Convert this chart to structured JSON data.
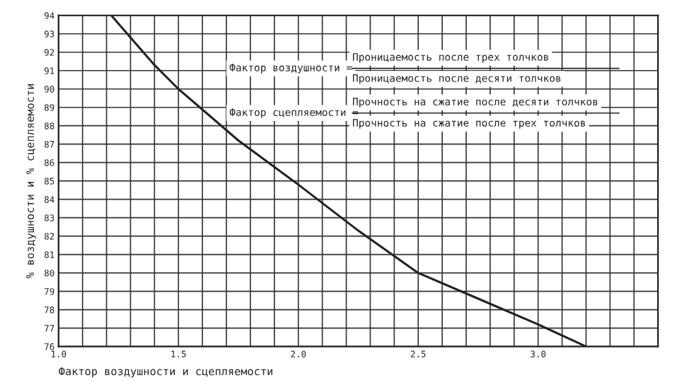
{
  "chart_data": {
    "type": "line",
    "xlabel": "Фактор воздушности и сцепляемости",
    "ylabel": "% воздушности и % сцепляемости",
    "x": [
      1.22,
      1.3,
      1.4,
      1.5,
      1.75,
      2.0,
      2.25,
      2.5,
      2.75,
      3.0,
      3.2
    ],
    "series": [
      {
        "color": "#222222",
        "values": [
          94,
          92.8,
          91.3,
          90,
          87.2,
          84.8,
          82.3,
          80.0,
          78.6,
          77.2,
          76
        ]
      }
    ],
    "xlim": [
      1.0,
      3.5
    ],
    "xticks": [
      {
        "value": 1.0,
        "label": "1.0"
      },
      {
        "value": 1.1,
        "label": null
      },
      {
        "value": 1.2,
        "label": null
      },
      {
        "value": 1.3,
        "label": null
      },
      {
        "value": 1.4,
        "label": null
      },
      1.5,
      {
        "value": 1.6,
        "label": null
      },
      {
        "value": 1.7,
        "label": null
      },
      {
        "value": 1.8,
        "label": null
      },
      {
        "value": 1.9,
        "label": null
      },
      {
        "value": 2.0,
        "label": "2.0"
      },
      {
        "value": 2.1,
        "label": null
      },
      {
        "value": 2.2,
        "label": null
      },
      {
        "value": 2.3,
        "label": null
      },
      {
        "value": 2.4,
        "label": null
      },
      2.5,
      {
        "value": 2.6,
        "label": null
      },
      {
        "value": 2.7,
        "label": null
      },
      {
        "value": 2.8,
        "label": null
      },
      {
        "value": 2.9,
        "label": null
      },
      {
        "value": 3.0,
        "label": "3.0"
      },
      {
        "value": 3.1,
        "label": null
      },
      {
        "value": 3.2,
        "label": null
      },
      {
        "value": 3.3,
        "label": null
      },
      {
        "value": 3.4,
        "label": null
      },
      {
        "value": 3.5,
        "label": null
      }
    ],
    "ylim": [
      76,
      94
    ],
    "yticks": [
      76,
      77,
      78,
      79,
      80,
      81,
      82,
      83,
      84,
      85,
      86,
      87,
      88,
      89,
      90,
      91,
      92,
      93,
      94
    ],
    "grid": true,
    "marker": "none",
    "line_style": "solid",
    "legend": false,
    "annotations": [
      "Фактор воздушности =",
      "Проницаемость после трех толчков",
      "Проницаемость после десяти толчков",
      "Фактор сцепляемости =",
      "Прочность на сжатие после десяти толчков",
      "Прочность на сжатие после трех толчков"
    ]
  }
}
